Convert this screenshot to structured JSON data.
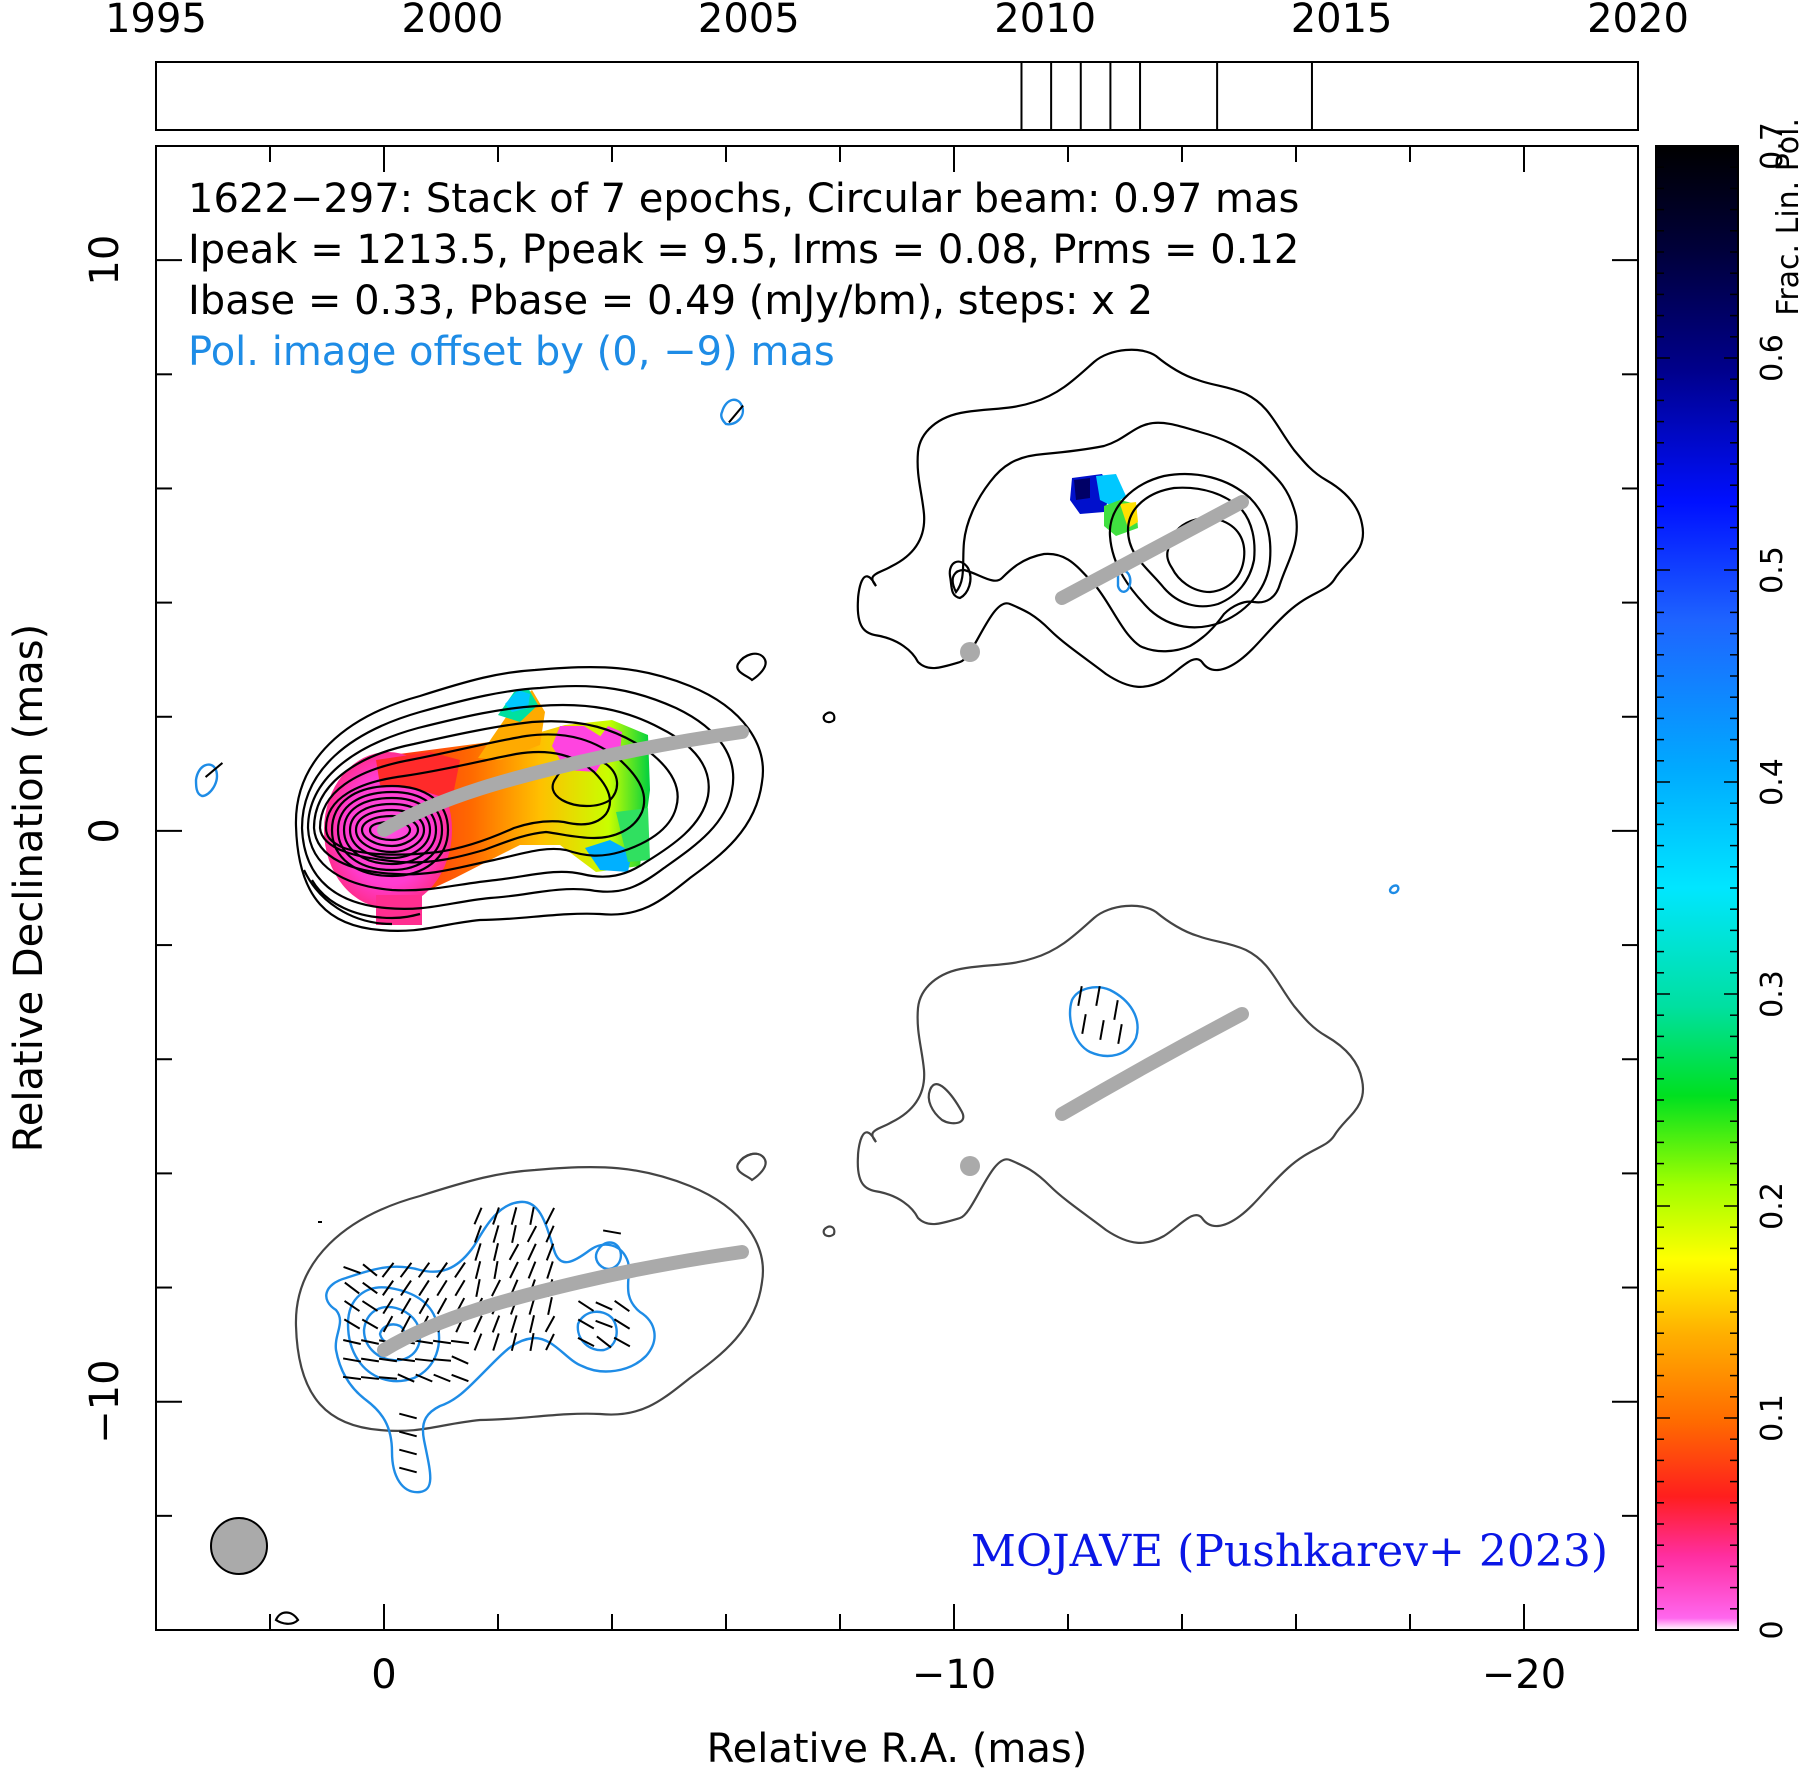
{
  "chart_data": {
    "type": "heatmap",
    "source": "1622−297",
    "annotation_lines": [
      "1622−297: Stack of 7 epochs, Circular beam: 0.97 mas",
      "Ipeak = 1213.5, Ppeak = 9.5, Irms = 0.08, Prms = 0.12",
      "Ibase = 0.33, Pbase = 0.49 (mJy/bm), steps: x 2"
    ],
    "offset_note": "Pol. image offset by (0, −9) mas",
    "credit": "MOJAVE (Pushkarev+ 2023)",
    "xlabel": "Relative R.A. (mas)",
    "ylabel": "Relative Declination (mas)",
    "xlim": [
      4,
      -22
    ],
    "ylim": [
      -14,
      12
    ],
    "x_ticks": [
      0,
      -10,
      -20
    ],
    "x_tick_labels": [
      "0",
      "−10",
      "−20"
    ],
    "y_ticks": [
      10,
      0,
      -10
    ],
    "y_tick_labels": [
      "10",
      "0",
      "−10"
    ],
    "epoch_timeline": {
      "range": [
        1995,
        2020
      ],
      "tick_labels": [
        "1995",
        "2000",
        "2005",
        "2010",
        "2015",
        "2020"
      ],
      "epochs": [
        2009.6,
        2010.1,
        2010.6,
        2011.1,
        2011.6,
        2012.9,
        2014.5
      ]
    },
    "colorbar": {
      "label": "Frac. Lin. Pol.",
      "range": [
        0,
        0.7
      ],
      "tick_labels": [
        "0",
        "0.1",
        "0.2",
        "0.3",
        "0.4",
        "0.5",
        "0.6",
        "0.7"
      ]
    },
    "beam_diameter_mas": 0.97,
    "ridgeline_top": [
      [
        0,
        0
      ],
      [
        -2,
        0.8
      ],
      [
        -4,
        1.4
      ],
      [
        -6.2,
        1.8
      ]
    ],
    "ridgeline_bottom": [
      [
        0,
        -9
      ],
      [
        -2,
        -8.2
      ],
      [
        -4,
        -7.6
      ],
      [
        -6.2,
        -7.2
      ]
    ]
  },
  "colors": {
    "contour_total": "#000000",
    "contour_pol": "#1e8ce6",
    "ridgeline": "#aaaaaa",
    "credit": "#0a16e6"
  }
}
